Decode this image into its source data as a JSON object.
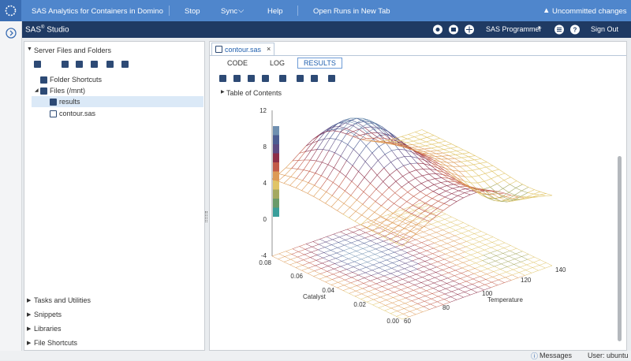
{
  "topbar": {
    "title": "SAS Analytics for Containers in Domino",
    "menu": [
      "Stop",
      "Sync",
      "Help",
      "Open Runs in New Tab"
    ],
    "warning": "Uncommitted changes"
  },
  "studio_bar": {
    "brand": "SAS",
    "brand_mark": "®",
    "product": "Studio",
    "role": "SAS Programmer",
    "sign_out": "Sign Out"
  },
  "navigator": {
    "title": "Server Files and Folders",
    "tree": [
      "Folder Shortcuts",
      "Files (/mnt)",
      "results",
      "contour.sas"
    ],
    "sections": [
      "Tasks and Utilities",
      "Snippets",
      "Libraries",
      "File Shortcuts"
    ]
  },
  "editor": {
    "tab": "contour.sas",
    "views": [
      "CODE",
      "LOG",
      "RESULTS"
    ],
    "toc": "Table of Contents"
  },
  "plot": {
    "z_ticks": [
      "12",
      "8",
      "4",
      "0",
      "-4"
    ],
    "x_label": "Catalyst",
    "x_ticks": [
      "0.08",
      "0.06",
      "0.04",
      "0.02",
      "0.00"
    ],
    "y_label": "Temperature",
    "y_ticks": [
      "60",
      "80",
      "100",
      "120",
      "140"
    ]
  },
  "status": {
    "messages": "Messages",
    "user": "User: ubuntu"
  }
}
